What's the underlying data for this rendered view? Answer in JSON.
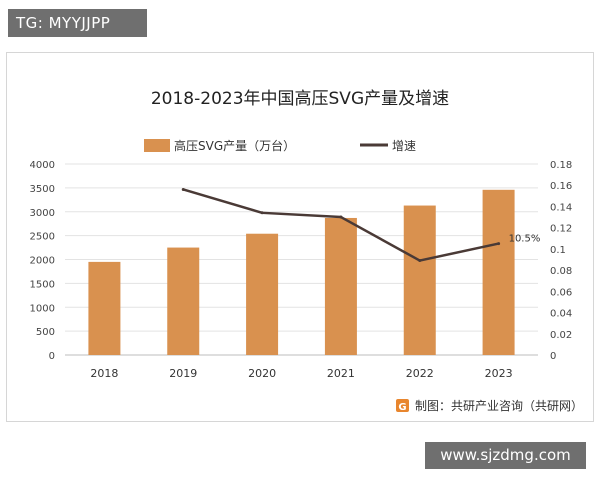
{
  "watermark_top": "TG: MYYJJPP",
  "watermark_bottom": "www.sjzdmg.com",
  "source_text": "制图：共研产业咨询（共研网）",
  "colors": {
    "bar": "#D9914F",
    "line": "#4A3A36",
    "logo": "#E8862E"
  },
  "chart_data": {
    "type": "bar+line",
    "title": "2018-2023年中国高压SVG产量及增速",
    "categories": [
      "2018",
      "2019",
      "2020",
      "2021",
      "2022",
      "2023"
    ],
    "series": [
      {
        "name": "高压SVG产量（万台）",
        "type": "bar",
        "axis": "left",
        "values": [
          1950,
          2250,
          2540,
          2870,
          3130,
          3460
        ]
      },
      {
        "name": "增速",
        "type": "line",
        "axis": "right",
        "values": [
          null,
          0.156,
          0.134,
          0.13,
          0.089,
          0.105
        ]
      }
    ],
    "data_labels": [
      {
        "series": "增速",
        "category": "2023",
        "text": "10.5%"
      }
    ],
    "y_left": {
      "min": 0,
      "max": 4000,
      "ticks": [
        "0",
        "500",
        "1000",
        "1500",
        "2000",
        "2500",
        "3000",
        "3500",
        "4000"
      ]
    },
    "y_right": {
      "min": 0,
      "max": 0.18,
      "ticks": [
        "0",
        "0.02",
        "0.04",
        "0.06",
        "0.08",
        "0.1",
        "0.12",
        "0.14",
        "0.16",
        "0.18"
      ]
    },
    "grid": true,
    "legend_position": "top"
  }
}
